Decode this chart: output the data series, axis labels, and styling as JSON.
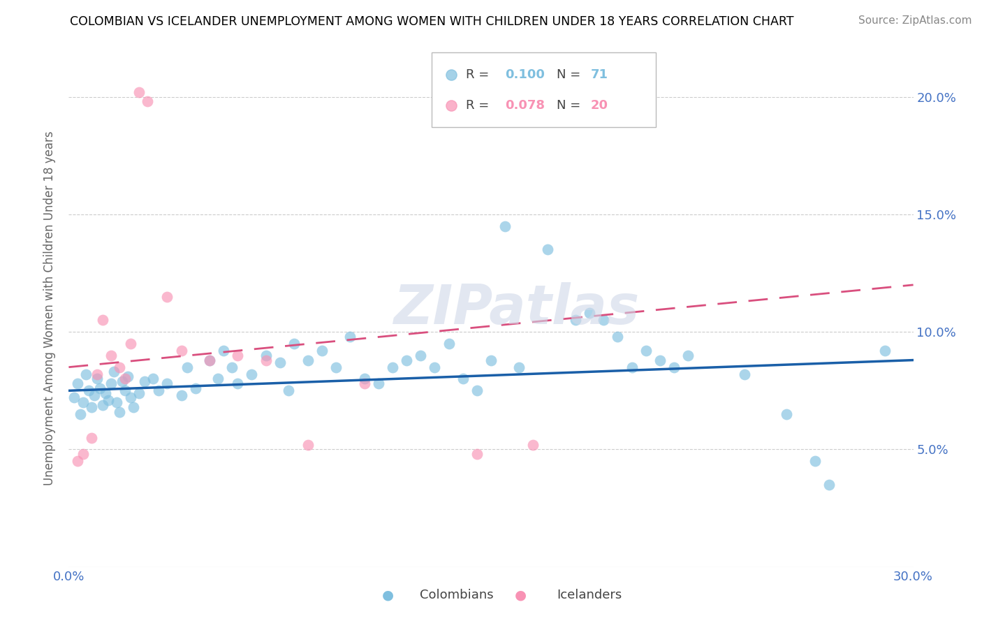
{
  "title": "COLOMBIAN VS ICELANDER UNEMPLOYMENT AMONG WOMEN WITH CHILDREN UNDER 18 YEARS CORRELATION CHART",
  "source": "Source: ZipAtlas.com",
  "ylabel": "Unemployment Among Women with Children Under 18 years",
  "xlim": [
    0.0,
    30.0
  ],
  "ylim": [
    0.0,
    22.0
  ],
  "yticks": [
    5.0,
    10.0,
    15.0,
    20.0
  ],
  "ytick_labels": [
    "5.0%",
    "10.0%",
    "15.0%",
    "20.0%"
  ],
  "legend_R_colombians": "0.100",
  "legend_N_colombians": "71",
  "legend_R_icelanders": "0.078",
  "legend_N_icelanders": "20",
  "colombian_color": "#7fbfdf",
  "icelander_color": "#f892b4",
  "regression_colombian_color": "#1a5fa8",
  "regression_icelander_color": "#d94f7e",
  "watermark": "ZIPatlas",
  "colombian_scatter": [
    [
      0.2,
      7.2
    ],
    [
      0.3,
      7.8
    ],
    [
      0.4,
      6.5
    ],
    [
      0.5,
      7.0
    ],
    [
      0.6,
      8.2
    ],
    [
      0.7,
      7.5
    ],
    [
      0.8,
      6.8
    ],
    [
      0.9,
      7.3
    ],
    [
      1.0,
      8.0
    ],
    [
      1.1,
      7.6
    ],
    [
      1.2,
      6.9
    ],
    [
      1.3,
      7.4
    ],
    [
      1.4,
      7.1
    ],
    [
      1.5,
      7.8
    ],
    [
      1.6,
      8.3
    ],
    [
      1.7,
      7.0
    ],
    [
      1.8,
      6.6
    ],
    [
      1.9,
      7.9
    ],
    [
      2.0,
      7.5
    ],
    [
      2.1,
      8.1
    ],
    [
      2.2,
      7.2
    ],
    [
      2.3,
      6.8
    ],
    [
      2.5,
      7.4
    ],
    [
      2.7,
      7.9
    ],
    [
      3.0,
      8.0
    ],
    [
      3.2,
      7.5
    ],
    [
      3.5,
      7.8
    ],
    [
      4.0,
      7.3
    ],
    [
      4.2,
      8.5
    ],
    [
      4.5,
      7.6
    ],
    [
      5.0,
      8.8
    ],
    [
      5.3,
      8.0
    ],
    [
      5.5,
      9.2
    ],
    [
      5.8,
      8.5
    ],
    [
      6.0,
      7.8
    ],
    [
      6.5,
      8.2
    ],
    [
      7.0,
      9.0
    ],
    [
      7.5,
      8.7
    ],
    [
      7.8,
      7.5
    ],
    [
      8.0,
      9.5
    ],
    [
      8.5,
      8.8
    ],
    [
      9.0,
      9.2
    ],
    [
      9.5,
      8.5
    ],
    [
      10.0,
      9.8
    ],
    [
      10.5,
      8.0
    ],
    [
      11.0,
      7.8
    ],
    [
      11.5,
      8.5
    ],
    [
      12.0,
      8.8
    ],
    [
      12.5,
      9.0
    ],
    [
      13.0,
      8.5
    ],
    [
      13.5,
      9.5
    ],
    [
      14.0,
      8.0
    ],
    [
      14.5,
      7.5
    ],
    [
      15.0,
      8.8
    ],
    [
      15.5,
      14.5
    ],
    [
      16.0,
      8.5
    ],
    [
      17.0,
      13.5
    ],
    [
      18.0,
      10.5
    ],
    [
      18.5,
      10.8
    ],
    [
      19.0,
      10.5
    ],
    [
      19.5,
      9.8
    ],
    [
      20.0,
      8.5
    ],
    [
      20.5,
      9.2
    ],
    [
      21.0,
      8.8
    ],
    [
      21.5,
      8.5
    ],
    [
      22.0,
      9.0
    ],
    [
      24.0,
      8.2
    ],
    [
      25.5,
      6.5
    ],
    [
      26.5,
      4.5
    ],
    [
      27.0,
      3.5
    ],
    [
      29.0,
      9.2
    ]
  ],
  "icelander_scatter": [
    [
      0.3,
      4.5
    ],
    [
      0.5,
      4.8
    ],
    [
      0.8,
      5.5
    ],
    [
      1.0,
      8.2
    ],
    [
      1.2,
      10.5
    ],
    [
      1.5,
      9.0
    ],
    [
      1.8,
      8.5
    ],
    [
      2.0,
      8.0
    ],
    [
      2.2,
      9.5
    ],
    [
      2.5,
      20.2
    ],
    [
      2.8,
      19.8
    ],
    [
      3.5,
      11.5
    ],
    [
      4.0,
      9.2
    ],
    [
      5.0,
      8.8
    ],
    [
      6.0,
      9.0
    ],
    [
      7.0,
      8.8
    ],
    [
      8.5,
      5.2
    ],
    [
      10.5,
      7.8
    ],
    [
      14.5,
      4.8
    ],
    [
      16.5,
      5.2
    ]
  ]
}
